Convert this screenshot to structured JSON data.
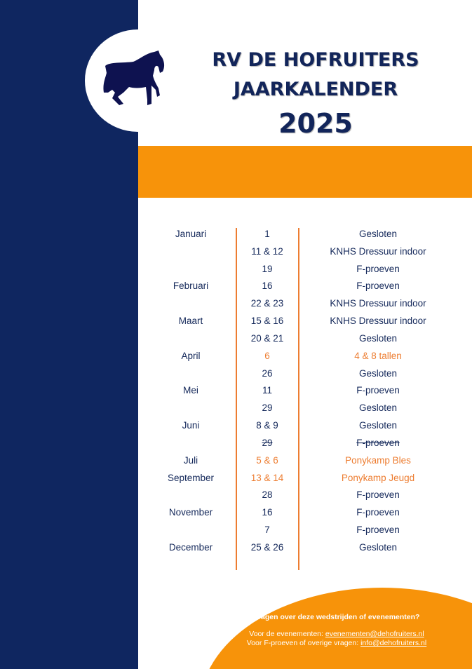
{
  "header": {
    "line1": "RV DE HOFRUITERS",
    "line2": "JAARKALENDER",
    "year": "2025",
    "logo": "horse-silhouette"
  },
  "colors": {
    "navy": "#0f2660",
    "orange": "#f7930a",
    "highlight": "#ed7d31",
    "text": "#14285a"
  },
  "rows": [
    {
      "month": "Januari",
      "date": "1",
      "event": "Gesloten"
    },
    {
      "month": "",
      "date": "11 & 12",
      "event": "KNHS Dressuur indoor"
    },
    {
      "month": "",
      "date": "19",
      "event": "F-proeven"
    },
    {
      "month": "Februari",
      "date": "16",
      "event": "F-proeven"
    },
    {
      "month": "",
      "date": "22 & 23",
      "event": "KNHS Dressuur indoor"
    },
    {
      "month": "Maart",
      "date": "15 & 16",
      "event": "KNHS Dressuur indoor"
    },
    {
      "month": "",
      "date": "20 & 21",
      "event": "Gesloten"
    },
    {
      "month": "April",
      "date": "6",
      "event": "4 & 8 tallen",
      "highlight": true
    },
    {
      "month": "",
      "date": "26",
      "event": "Gesloten"
    },
    {
      "month": "Mei",
      "date": "11",
      "event": "F-proeven"
    },
    {
      "month": "",
      "date": "29",
      "event": "Gesloten"
    },
    {
      "month": "Juni",
      "date": "8 & 9",
      "event": "Gesloten"
    },
    {
      "month": "",
      "date": "29",
      "event": "F-proeven",
      "struck": true
    },
    {
      "month": "Juli",
      "date": "5 & 6",
      "event": "Ponykamp Bles",
      "highlight": true
    },
    {
      "month": "September",
      "date": "13 & 14",
      "event": "Ponykamp Jeugd",
      "highlight": true
    },
    {
      "month": "",
      "date": "28",
      "event": "F-proeven"
    },
    {
      "month": "November",
      "date": "16",
      "event": "F-proeven"
    },
    {
      "month": "",
      "date": "7",
      "event": "F-proeven"
    },
    {
      "month": "December",
      "date": "25 & 26",
      "event": "Gesloten"
    }
  ],
  "footer": {
    "question": "Vragen over deze wedstrijden of evenementen?",
    "events_label": "Voor de evenementen: ",
    "events_email": "evenementen@dehofruiters.nl",
    "other_label": "Voor F-proeven of overige vragen: ",
    "other_email": "info@dehofruiters.nl"
  }
}
